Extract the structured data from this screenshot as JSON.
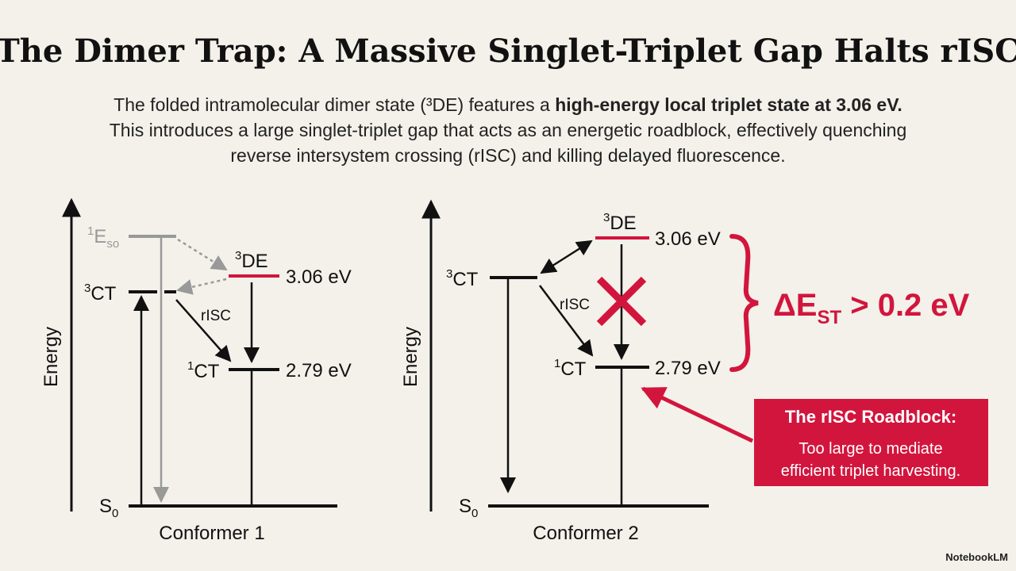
{
  "title": "The Dimer Trap: A Massive Singlet-Triplet Gap Halts rISC",
  "subtitle": {
    "line1_plain": "The folded intramolecular dimer state (³DE) features a ",
    "line1_bold": "high-energy local triplet state at 3.06 eV.",
    "line2": "This introduces a large singlet-triplet gap that acts as an energetic roadblock, effectively quenching",
    "line3": "reverse intersystem crossing (rISC) and killing delayed fluorescence."
  },
  "panels": [
    {
      "axis_label": "Energy",
      "caption": "Conformer 1",
      "arrow_label": "rISC",
      "levels": {
        "eso": {
          "sup": "1",
          "main": "E",
          "sub": "so"
        },
        "ct3": {
          "sup": "3",
          "main": "CT"
        },
        "de3": {
          "sup": "3",
          "main": "DE",
          "energy": "3.06 eV"
        },
        "ct1": {
          "sup": "1",
          "main": "CT",
          "energy": "2.79 eV"
        },
        "s0": {
          "main": "S",
          "sub": "0"
        }
      }
    },
    {
      "axis_label": "Energy",
      "caption": "Conformer 2",
      "arrow_label": "rISC",
      "levels": {
        "ct3": {
          "sup": "3",
          "main": "CT"
        },
        "de3": {
          "sup": "3",
          "main": "DE",
          "energy": "3.06 eV"
        },
        "ct1": {
          "sup": "1",
          "main": "CT",
          "energy": "2.79 eV"
        },
        "s0": {
          "main": "S",
          "sub": "0"
        }
      },
      "gap_label": {
        "main": "ΔE",
        "sub": "ST",
        "rest": " > 0.2 eV"
      },
      "callout": {
        "title": "The rISC Roadblock:",
        "line1": "Too large to mediate",
        "line2": "efficient triplet harvesting."
      }
    }
  ],
  "footer": "NotebookLM"
}
